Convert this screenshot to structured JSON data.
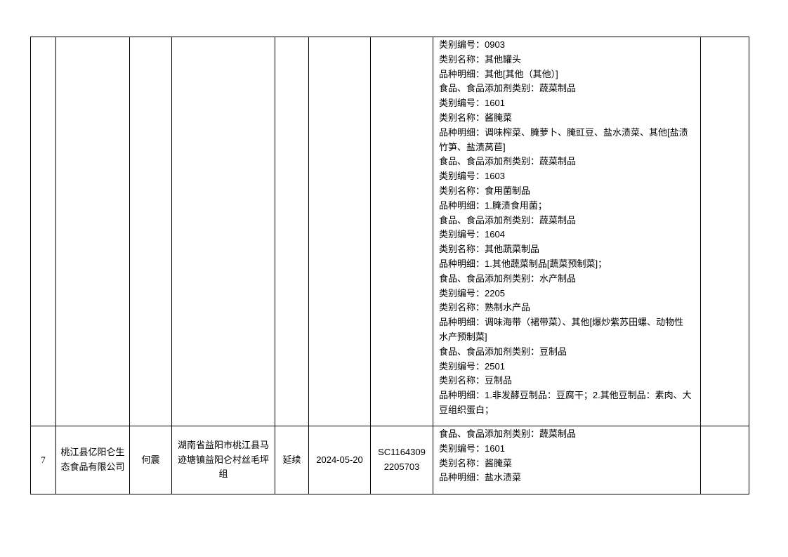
{
  "rows": [
    {
      "index": "",
      "company": "",
      "legal_rep": "",
      "address": "",
      "type": "",
      "date": "",
      "license_no": "",
      "details": [
        "类别编号：0903",
        "类别名称：其他罐头",
        "品种明细：其他[其他（其他）]",
        "食品、食品添加剂类别：蔬菜制品",
        "类别编号：1601",
        "类别名称：酱腌菜",
        "品种明细：调味榨菜、腌萝卜、腌豇豆、盐水渍菜、其他[盐渍",
        "竹笋、盐渍莴苣]",
        "食品、食品添加剂类别：蔬菜制品",
        "类别编号：1603",
        "类别名称：食用菌制品",
        "品种明细：1.腌渍食用菌；",
        "食品、食品添加剂类别：蔬菜制品",
        "类别编号：1604",
        "类别名称：其他蔬菜制品",
        "品种明细：1.其他蔬菜制品[蔬菜预制菜]；",
        "食品、食品添加剂类别：水产制品",
        "类别编号：2205",
        "类别名称：熟制水产品",
        "品种明细：调味海带（裙带菜）、其他[爆炒紫苏田螺、动物性",
        "水产预制菜]",
        "食品、食品添加剂类别：豆制品",
        "类别编号：2501",
        "类别名称：豆制品",
        "品种明细：1.非发酵豆制品：豆腐干；2.其他豆制品：素肉、大",
        "豆组织蛋白；"
      ],
      "remark": ""
    },
    {
      "index": "7",
      "company": "桃江县亿阳仑生态食品有限公司",
      "legal_rep": "何震",
      "address": "湖南省益阳市桃江县马迹塘镇益阳仑村丝毛坪组",
      "type": "延续",
      "date": "2024-05-20",
      "license_no": "SC11643092205703",
      "license_no_lines": [
        "SC1164309",
        "2205703"
      ],
      "details": [
        "食品、食品添加剂类别：蔬菜制品",
        "类别编号：1601",
        "类别名称：酱腌菜",
        "品种明细：盐水渍菜"
      ],
      "remark": ""
    }
  ]
}
